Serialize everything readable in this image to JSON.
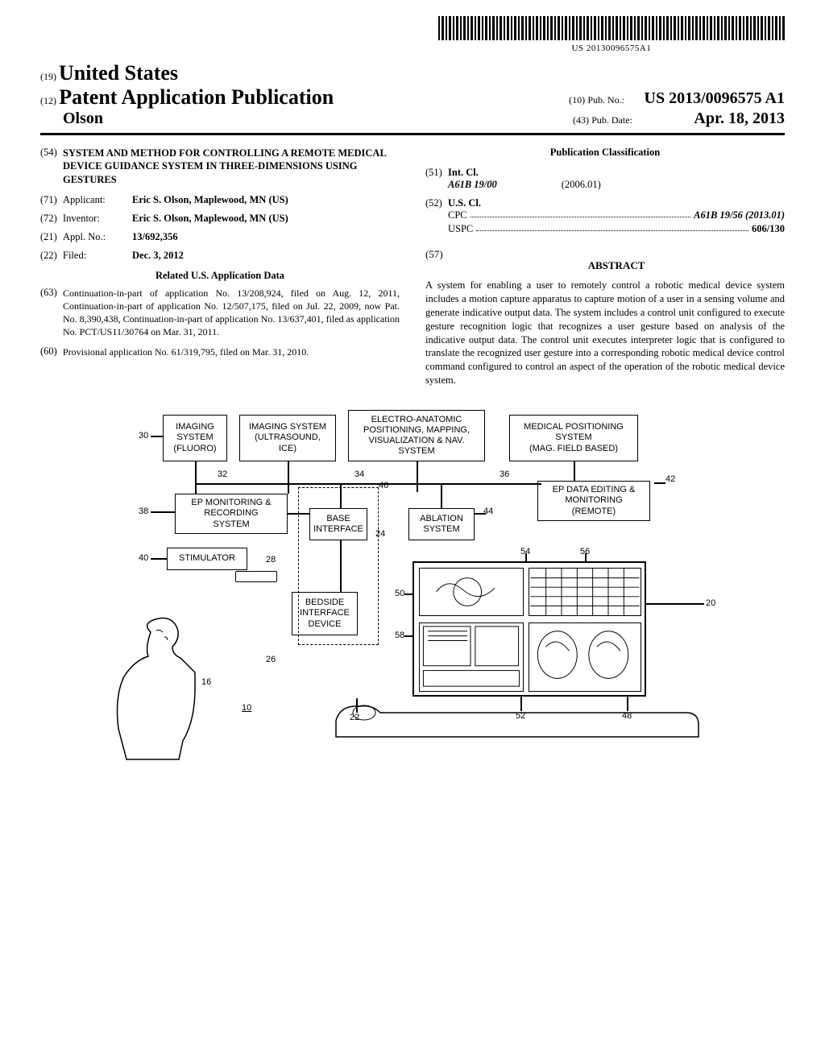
{
  "barcode_number": "US 20130096575A1",
  "country": "United States",
  "country_code": "(19)",
  "pub_type_code": "(12)",
  "pub_type": "Patent Application Publication",
  "inventor_surname": "Olson",
  "pub_no_code": "(10)",
  "pub_no_label": "Pub. No.:",
  "pub_no_value": "US 2013/0096575 A1",
  "pub_date_code": "(43)",
  "pub_date_label": "Pub. Date:",
  "pub_date_value": "Apr. 18, 2013",
  "left_col": {
    "title_code": "(54)",
    "title": "SYSTEM AND METHOD FOR CONTROLLING A REMOTE MEDICAL DEVICE GUIDANCE SYSTEM IN THREE-DIMENSIONS USING GESTURES",
    "applicant_code": "(71)",
    "applicant_label": "Applicant:",
    "applicant_value": "Eric S. Olson, Maplewood, MN (US)",
    "inventor_code": "(72)",
    "inventor_label": "Inventor:",
    "inventor_value": "Eric S. Olson, Maplewood, MN (US)",
    "appl_no_code": "(21)",
    "appl_no_label": "Appl. No.:",
    "appl_no_value": "13/692,356",
    "filed_code": "(22)",
    "filed_label": "Filed:",
    "filed_value": "Dec. 3, 2012",
    "related_head": "Related U.S. Application Data",
    "related_63_code": "(63)",
    "related_63_text": "Continuation-in-part of application No. 13/208,924, filed on Aug. 12, 2011, Continuation-in-part of application No. 12/507,175, filed on Jul. 22, 2009, now Pat. No. 8,390,438, Continuation-in-part of application No. 13/637,401, filed as application No. PCT/US11/30764 on Mar. 31, 2011.",
    "related_60_code": "(60)",
    "related_60_text": "Provisional application No. 61/319,795, filed on Mar. 31, 2010."
  },
  "right_col": {
    "classification_head": "Publication Classification",
    "int_cl_code": "(51)",
    "int_cl_label": "Int. Cl.",
    "int_cl_class": "A61B 19/00",
    "int_cl_date": "(2006.01)",
    "us_cl_code": "(52)",
    "us_cl_label": "U.S. Cl.",
    "cpc_label": "CPC",
    "cpc_value": "A61B 19/56 (2013.01)",
    "uspc_label": "USPC",
    "uspc_value": "606/130",
    "abstract_code": "(57)",
    "abstract_head": "ABSTRACT",
    "abstract_text": "A system for enabling a user to remotely control a robotic medical device system includes a motion capture apparatus to capture motion of a user in a sensing volume and generate indicative output data. The system includes a control unit configured to execute gesture recognition logic that recognizes a user gesture based on analysis of the indicative output data. The control unit executes interpreter logic that is configured to translate the recognized user gesture into a corresponding robotic medical device control command configured to control an aspect of the operation of the robotic medical device system."
  },
  "figure": {
    "boxes": {
      "imaging_fluoro": "IMAGING\nSYSTEM\n(FLUORO)",
      "imaging_us": "IMAGING SYSTEM\n(ULTRASOUND,\nICE)",
      "electro": "ELECTRO-ANATOMIC\nPOSITIONING, MAPPING,\nVISUALIZATION & NAV.\nSYSTEM",
      "med_pos": "MEDICAL POSITIONING\nSYSTEM\n(MAG. FIELD BASED)",
      "ep_mon": "EP MONITORING &\nRECORDING\nSYSTEM",
      "ep_edit": "EP DATA EDITING &\nMONITORING\n(REMOTE)",
      "base_if": "BASE\nINTERFACE",
      "ablation": "ABLATION\nSYSTEM",
      "stimulator": "STIMULATOR",
      "bedside": "BEDSIDE\nINTERFACE\nDEVICE"
    },
    "refs": {
      "r30": "30",
      "r32": "32",
      "r34": "34",
      "r36": "36",
      "r38": "38",
      "r40": "40",
      "r42": "42",
      "r44": "44",
      "r46": "46",
      "r24": "24",
      "r28": "28",
      "r26": "26",
      "r16": "16",
      "r10": "10",
      "r50": "50",
      "r58": "58",
      "r22": "22",
      "r52": "52",
      "r48": "48",
      "r20": "20",
      "r54": "54",
      "r56": "56"
    }
  }
}
